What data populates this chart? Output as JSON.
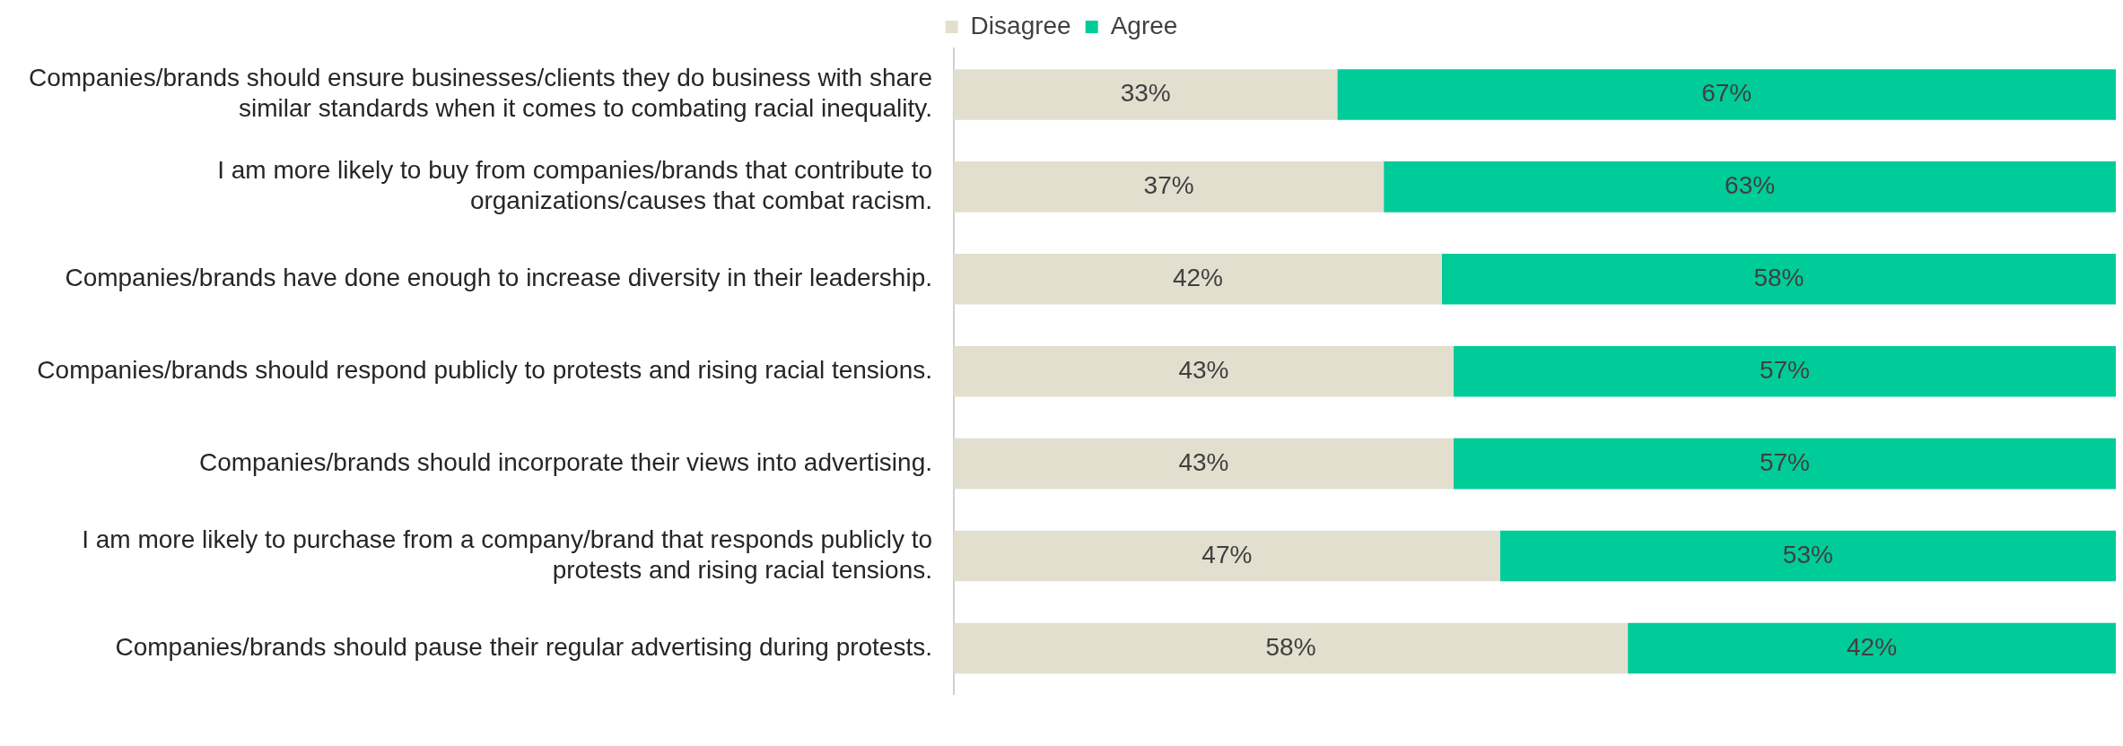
{
  "chart_data": {
    "type": "bar",
    "orientation": "horizontal",
    "stacked": true,
    "legend": "top",
    "tick_labels": "y",
    "xlim": [
      0,
      100
    ],
    "categories": [
      "Companies/brands should ensure businesses/clients they do business with share similar standards when it comes to combating racial inequality.",
      "I am more likely to buy from companies/brands that contribute to organizations/causes that combat racism.",
      "Companies/brands have done enough to increase diversity in their leadership.",
      "Companies/brands should respond publicly to protests and rising racial tensions.",
      "Companies/brands should incorporate their views into advertising.",
      "I am more likely to purchase from a company/brand that responds publicly to protests and rising racial tensions.",
      "Companies/brands should pause their regular advertising during protests."
    ],
    "series": [
      {
        "name": "Disagree",
        "color": "#e3dfcf",
        "values": [
          33,
          37,
          42,
          43,
          43,
          47,
          58
        ],
        "value_labels": [
          "33%",
          "37%",
          "42%",
          "43%",
          "43%",
          "47%",
          "58%"
        ]
      },
      {
        "name": "Agree",
        "color": "#00cc99",
        "values": [
          67,
          63,
          58,
          57,
          57,
          53,
          42
        ],
        "value_labels": [
          "67%",
          "63%",
          "58%",
          "57%",
          "57%",
          "53%",
          "42%"
        ]
      }
    ]
  }
}
